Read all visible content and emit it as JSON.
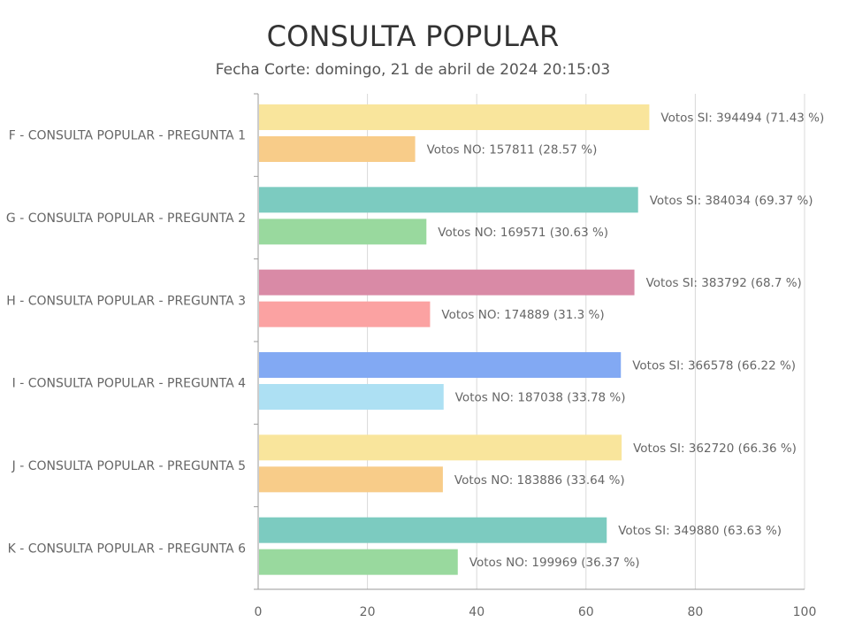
{
  "chart_data": {
    "type": "bar",
    "orientation": "horizontal",
    "title": "CONSULTA POPULAR",
    "subtitle": "Fecha Corte: domingo, 21 de abril de 2024 20:15:03",
    "xlim": [
      0,
      100
    ],
    "xticks": [
      0,
      20,
      40,
      60,
      80,
      100
    ],
    "grid": true,
    "categories": [
      "F - CONSULTA POPULAR - PREGUNTA 1",
      "G - CONSULTA POPULAR - PREGUNTA 2",
      "H - CONSULTA POPULAR - PREGUNTA 3",
      "I - CONSULTA POPULAR - PREGUNTA 4",
      "J - CONSULTA POPULAR - PREGUNTA 5",
      "K - CONSULTA POPULAR - PREGUNTA 6"
    ],
    "series": [
      {
        "key": "si",
        "values": [
          71.43,
          69.37,
          68.7,
          66.22,
          66.36,
          63.63
        ],
        "labels": [
          "Votos SI: 394494 (71.43 %)",
          "Votos SI: 384034 (69.37 %)",
          "Votos SI: 383792 (68.7 %)",
          "Votos SI: 366578 (66.22 %)",
          "Votos SI: 362720 (66.36 %)",
          "Votos SI: 349880 (63.63 %)"
        ],
        "colors": [
          "#f9e59c",
          "#7ccbc0",
          "#d98aa6",
          "#82a9f3",
          "#f9e59c",
          "#7ccbc0"
        ]
      },
      {
        "key": "no",
        "values": [
          28.57,
          30.63,
          31.3,
          33.78,
          33.64,
          36.37
        ],
        "labels": [
          "Votos NO: 157811 (28.57 %)",
          "Votos NO: 169571 (30.63 %)",
          "Votos NO: 174889 (31.3 %)",
          "Votos NO: 187038 (33.78 %)",
          "Votos NO: 183886 (33.64 %)",
          "Votos NO: 199969 (36.37 %)"
        ],
        "colors": [
          "#f8cc89",
          "#99d99e",
          "#fba2a2",
          "#ade0f3",
          "#f8cc89",
          "#99d99e"
        ]
      }
    ],
    "colors": {
      "grid": "#d9d9d9",
      "axis": "#999999",
      "label_text": "#666666",
      "tick_text": "#666666"
    }
  }
}
